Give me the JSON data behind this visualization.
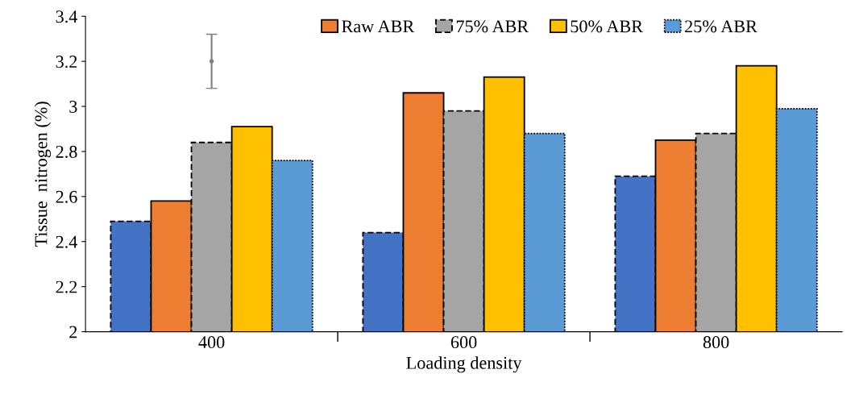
{
  "chart_data": {
    "type": "bar",
    "xlabel": "Loading density",
    "ylabel": "Tissue  nitrogen (%)",
    "categories": [
      "400",
      "600",
      "800"
    ],
    "ylim": [
      2,
      3.4
    ],
    "yticks": [
      2,
      2.2,
      2.4,
      2.6,
      2.8,
      3,
      3.2,
      3.4
    ],
    "grid": false,
    "legend": "top",
    "series": [
      {
        "color": "#4472c4",
        "values": [
          2.49,
          2.44,
          2.69
        ],
        "line_style": "dashed"
      },
      {
        "name": "Raw ABR",
        "color": "#ed7d31",
        "values": [
          2.58,
          3.06,
          2.85
        ],
        "line_style": "solid"
      },
      {
        "name": "75% ABR",
        "color": "#a5a5a5",
        "values": [
          2.84,
          2.98,
          2.88
        ],
        "line_style": "dashed"
      },
      {
        "name": "50% ABR",
        "color": "#ffc000",
        "values": [
          2.91,
          3.13,
          3.18
        ],
        "line_style": "solid"
      },
      {
        "name": "25% ABR",
        "color": "#5b9bd5",
        "values": [
          2.76,
          2.88,
          2.99
        ],
        "line_style": "dotted"
      },
      {
        "type": "scatter",
        "color": "#808080",
        "values": [
          3.2,
          null,
          null
        ],
        "errors": [
          0.12,
          null,
          null
        ],
        "marker": "circle"
      }
    ]
  }
}
